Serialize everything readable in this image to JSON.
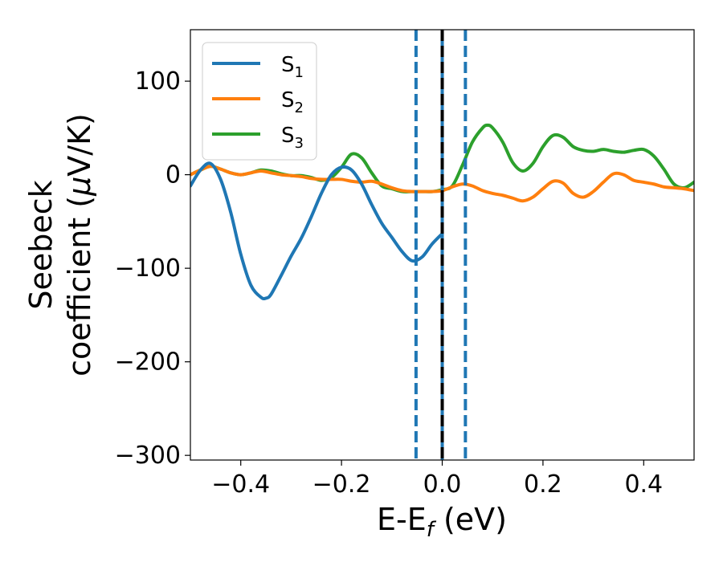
{
  "chart_data": {
    "type": "line",
    "xlabel": {
      "base": "E-E",
      "subscript": "f",
      "suffix": " (eV)"
    },
    "ylabel": {
      "line1": "Seebeck",
      "line2_prefix": "coefficient  (",
      "mu": "μ",
      "line2_suffix": "V/K)"
    },
    "xlim": [
      -0.5,
      0.5
    ],
    "ylim": [
      -305,
      155
    ],
    "xticks": [
      -0.4,
      -0.2,
      0.0,
      0.2,
      0.4
    ],
    "xtick_labels": [
      "−0.4",
      "−0.2",
      "0.0",
      "0.2",
      "0.4"
    ],
    "yticks": [
      -300,
      -200,
      -100,
      0,
      100
    ],
    "ytick_labels": [
      "−300",
      "−200",
      "−100",
      "0",
      "100"
    ],
    "legend_position": "top-left",
    "series": [
      {
        "name": "S1",
        "label_base": "S",
        "label_sub": "1",
        "color": "#1f77b4",
        "x": [
          -0.5,
          -0.48,
          -0.46,
          -0.44,
          -0.42,
          -0.4,
          -0.38,
          -0.36,
          -0.35,
          -0.34,
          -0.32,
          -0.3,
          -0.28,
          -0.26,
          -0.24,
          -0.22,
          -0.2,
          -0.18,
          -0.16,
          -0.14,
          -0.12,
          -0.1,
          -0.08,
          -0.06,
          -0.04,
          -0.02,
          0.0
        ],
        "y": [
          -12,
          5,
          12,
          -5,
          -40,
          -85,
          -118,
          -131,
          -132,
          -128,
          -108,
          -87,
          -68,
          -45,
          -20,
          0,
          8,
          5,
          -10,
          -32,
          -52,
          -67,
          -82,
          -92,
          -88,
          -74,
          -63
        ]
      },
      {
        "name": "S2",
        "label_base": "S",
        "label_sub": "2",
        "color": "#ff7f0e",
        "x": [
          -0.5,
          -0.48,
          -0.46,
          -0.44,
          -0.42,
          -0.4,
          -0.38,
          -0.36,
          -0.34,
          -0.32,
          -0.3,
          -0.28,
          -0.26,
          -0.24,
          -0.22,
          -0.2,
          -0.18,
          -0.16,
          -0.14,
          -0.12,
          -0.1,
          -0.08,
          -0.06,
          -0.04,
          -0.02,
          0.0,
          0.02,
          0.04,
          0.06,
          0.08,
          0.1,
          0.12,
          0.14,
          0.16,
          0.18,
          0.2,
          0.22,
          0.24,
          0.26,
          0.28,
          0.3,
          0.32,
          0.34,
          0.36,
          0.38,
          0.4,
          0.42,
          0.44,
          0.46,
          0.48,
          0.5
        ],
        "y": [
          0,
          5,
          9,
          6,
          2,
          0,
          2,
          4,
          2,
          0,
          -1,
          -2,
          -4,
          -5,
          -5,
          -5,
          -7,
          -8,
          -7,
          -10,
          -14,
          -17,
          -18,
          -18,
          -18,
          -17,
          -13,
          -10,
          -12,
          -17,
          -20,
          -22,
          -25,
          -28,
          -24,
          -15,
          -7,
          -9,
          -20,
          -24,
          -18,
          -8,
          1,
          0,
          -6,
          -8,
          -10,
          -13,
          -14,
          -15,
          -17
        ]
      },
      {
        "name": "S3",
        "label_base": "S",
        "label_sub": "3",
        "color": "#2ca02c",
        "x": [
          -0.5,
          -0.48,
          -0.46,
          -0.44,
          -0.42,
          -0.4,
          -0.38,
          -0.36,
          -0.34,
          -0.32,
          -0.3,
          -0.28,
          -0.26,
          -0.24,
          -0.22,
          -0.2,
          -0.18,
          -0.16,
          -0.14,
          -0.12,
          -0.1,
          -0.08,
          -0.06,
          -0.04,
          -0.02,
          0.0,
          0.02,
          0.04,
          0.06,
          0.08,
          0.09,
          0.1,
          0.12,
          0.14,
          0.16,
          0.18,
          0.2,
          0.22,
          0.24,
          0.26,
          0.28,
          0.3,
          0.32,
          0.34,
          0.36,
          0.38,
          0.4,
          0.42,
          0.44,
          0.46,
          0.48,
          0.5
        ],
        "y": [
          0,
          5,
          9,
          6,
          2,
          0,
          2,
          5,
          4,
          1,
          -1,
          -1,
          -3,
          -6,
          -3,
          8,
          22,
          18,
          2,
          -12,
          -15,
          -18,
          -18,
          -18,
          -18,
          -16,
          -12,
          10,
          35,
          50,
          53,
          50,
          35,
          13,
          4,
          12,
          30,
          42,
          40,
          30,
          26,
          25,
          27,
          25,
          24,
          26,
          27,
          20,
          6,
          -10,
          -14,
          -8
        ]
      }
    ],
    "vlines": [
      {
        "x": -0.052,
        "style": "dashed",
        "color": "#1f77b4"
      },
      {
        "x": 0.0,
        "style": "solid",
        "color": "#1f77b4"
      },
      {
        "x": 0.0,
        "style": "dashed",
        "color": "#000000"
      },
      {
        "x": 0.046,
        "style": "dashed",
        "color": "#1f77b4"
      }
    ]
  }
}
